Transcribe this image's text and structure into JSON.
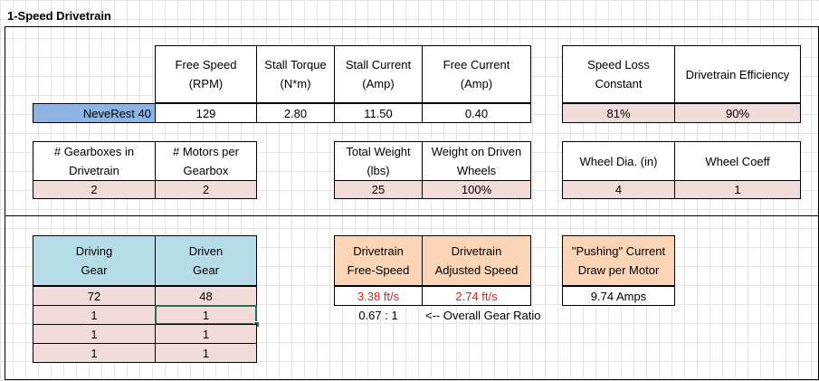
{
  "title": "1-Speed Drivetrain",
  "motor_table": {
    "motor_name": "NeveRest 40",
    "headers": {
      "free_speed": "Free Speed\n(RPM)",
      "stall_torque": "Stall Torque\n(N*m)",
      "stall_current": "Stall Current\n(Amp)",
      "free_current": "Free Current\n(Amp)",
      "speed_loss": "Speed Loss\nConstant",
      "efficiency": "Drivetrain Efficiency"
    },
    "values": {
      "free_speed": "129",
      "stall_torque": "2.80",
      "stall_current": "11.50",
      "free_current": "0.40",
      "speed_loss": "81%",
      "efficiency": "90%"
    }
  },
  "config_table": {
    "headers": {
      "gearboxes": "# Gearboxes in\nDrivetrain",
      "motors_per_gearbox": "# Motors per\nGearbox",
      "total_weight": "Total Weight\n(lbs)",
      "weight_on_driven": "Weight on Driven\nWheels",
      "wheel_dia": "Wheel Dia. (in)",
      "wheel_coeff": "Wheel Coeff"
    },
    "values": {
      "gearboxes": "2",
      "motors_per_gearbox": "2",
      "total_weight": "25",
      "weight_on_driven": "100%",
      "wheel_dia": "4",
      "wheel_coeff": "1"
    }
  },
  "gear_table": {
    "headers": {
      "driving": "Driving\nGear",
      "driven": "Driven\nGear"
    },
    "rows": [
      {
        "driving": "72",
        "driven": "48"
      },
      {
        "driving": "1",
        "driven": "1"
      },
      {
        "driving": "1",
        "driven": "1"
      },
      {
        "driving": "1",
        "driven": "1"
      }
    ]
  },
  "results": {
    "headers": {
      "free_speed": "Drivetrain\nFree-Speed",
      "adjusted_speed": "Drivetrain\nAdjusted Speed",
      "pushing_current": "\"Pushing\" Current\nDraw per Motor"
    },
    "values": {
      "free_speed": "3.38 ft/s",
      "adjusted_speed": "2.74 ft/s",
      "pushing_current": "9.74 Amps"
    },
    "gear_ratio": "0.67 : 1",
    "gear_ratio_note": "<-- Overall Gear Ratio"
  },
  "colors": {
    "input_fill": "#f2dcdb",
    "result_fill": "#fbd5b5",
    "gear_header_fill": "#b7dee8",
    "motor_name_fill": "#8db4e2",
    "result_text": "#e02020",
    "selection": "#217346"
  }
}
